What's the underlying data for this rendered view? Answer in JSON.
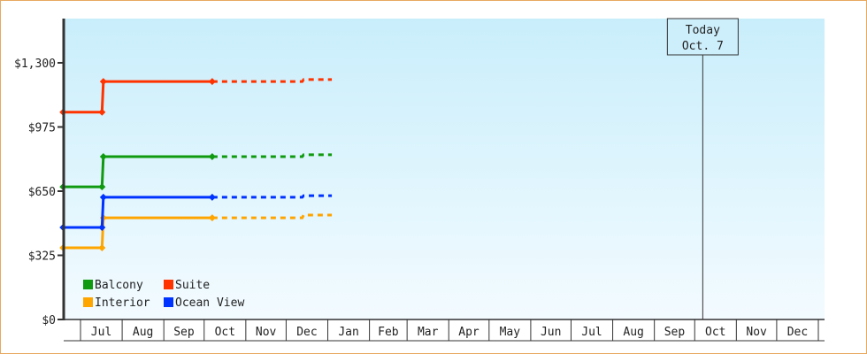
{
  "chart_data": {
    "type": "line",
    "step": true,
    "ylim": [
      0,
      1524
    ],
    "yticks": [
      0,
      325,
      650,
      975,
      1300
    ],
    "ytick_labels": [
      "$0",
      "$325",
      "$650",
      "$975",
      "$1,300"
    ],
    "xtick_labels": [
      "Jul",
      "Aug",
      "Sep",
      "Oct",
      "Nov",
      "Dec",
      "Jan",
      "Feb",
      "Mar",
      "Apr",
      "May",
      "Jun",
      "Jul",
      "Aug",
      "Sep",
      "Oct",
      "Nov",
      "Dec"
    ],
    "x_start": "Jun 18",
    "x_end": "Jan 4",
    "today": {
      "line1": "Today",
      "line2": "Oct. 7",
      "date": "Oct 7"
    },
    "legend_position": "bottom-left",
    "grid": false,
    "series": [
      {
        "name": "Balcony",
        "color": "#109a10",
        "points": [
          [
            "Jun 18",
            672
          ],
          [
            "Jul 17",
            672
          ],
          [
            "Jul 18",
            825
          ],
          [
            "Oct 7",
            825
          ]
        ],
        "forecast": [
          [
            "Oct 7",
            825
          ],
          [
            "Dec 13",
            825
          ],
          [
            "Dec 14",
            834
          ],
          [
            "Jan 4",
            834
          ]
        ]
      },
      {
        "name": "Suite",
        "color": "#ff3300",
        "points": [
          [
            "Jun 18",
            1050
          ],
          [
            "Jul 17",
            1050
          ],
          [
            "Jul 18",
            1205
          ],
          [
            "Oct 7",
            1205
          ]
        ],
        "forecast": [
          [
            "Oct 7",
            1205
          ],
          [
            "Dec 13",
            1205
          ],
          [
            "Dec 14",
            1215
          ],
          [
            "Jan 4",
            1215
          ]
        ]
      },
      {
        "name": "Interior",
        "color": "#ffa500",
        "points": [
          [
            "Jun 18",
            363
          ],
          [
            "Jul 17",
            363
          ],
          [
            "Jul 18",
            515
          ],
          [
            "Oct 7",
            515
          ]
        ],
        "forecast": [
          [
            "Oct 7",
            515
          ],
          [
            "Dec 13",
            515
          ],
          [
            "Dec 14",
            529
          ],
          [
            "Jan 4",
            529
          ]
        ]
      },
      {
        "name": "Ocean View",
        "color": "#0033ff",
        "points": [
          [
            "Jun 18",
            466
          ],
          [
            "Jul 17",
            466
          ],
          [
            "Jul 18",
            619
          ],
          [
            "Oct 7",
            619
          ]
        ],
        "forecast": [
          [
            "Oct 7",
            619
          ],
          [
            "Dec 13",
            619
          ],
          [
            "Dec 14",
            627
          ],
          [
            "Jan 4",
            627
          ]
        ]
      }
    ]
  }
}
